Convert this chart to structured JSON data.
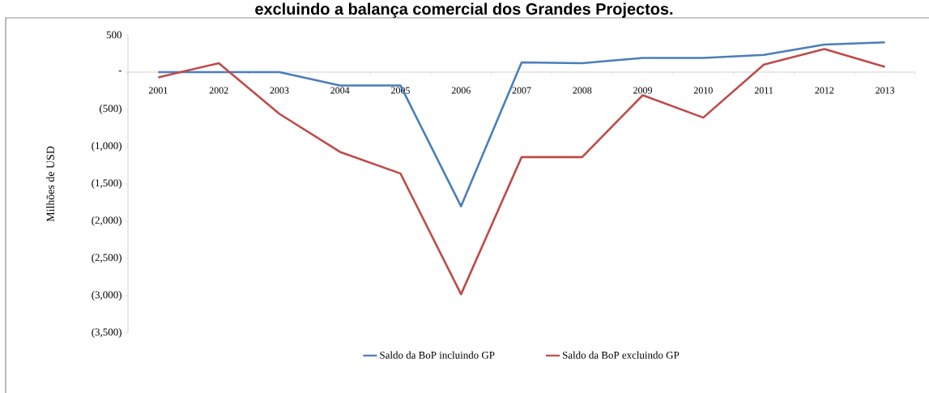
{
  "chart_data": {
    "type": "line",
    "title": "excluindo a balança comercial dos Grandes Projectos.",
    "ylabel": "Milhões de USD",
    "categories": [
      "2001",
      "2002",
      "2003",
      "2004",
      "2005",
      "2006",
      "2007",
      "2008",
      "2009",
      "2010",
      "2011",
      "2012",
      "2013"
    ],
    "series": [
      {
        "name": "Saldo da BoP incluindo GP",
        "color": "#4a7ebb",
        "values": [
          0,
          0,
          0,
          -180,
          -180,
          -1800,
          130,
          120,
          190,
          190,
          230,
          370,
          400
        ]
      },
      {
        "name": "Saldo da BoP excluindo GP",
        "color": "#be4b48",
        "values": [
          -70,
          120,
          -560,
          -1070,
          -1360,
          -2980,
          -1140,
          -1140,
          -310,
          -610,
          100,
          310,
          70
        ]
      }
    ],
    "ylim": [
      -3500,
      500
    ],
    "yticks": [
      500,
      {
        "value": 0,
        "label": "-"
      },
      {
        "value": -500,
        "label": "(500)"
      },
      {
        "value": -1000,
        "label": "(1,000)"
      },
      {
        "value": -1500,
        "label": "(1,500)"
      },
      {
        "value": -2000,
        "label": "(2,000)"
      },
      {
        "value": -2500,
        "label": "(2,500)"
      },
      {
        "value": -3000,
        "label": "(3,000)"
      },
      {
        "value": -3500,
        "label": "(3,500)"
      }
    ],
    "grid": false,
    "legend": "bottom",
    "marker": "none",
    "line_style": "solid"
  }
}
